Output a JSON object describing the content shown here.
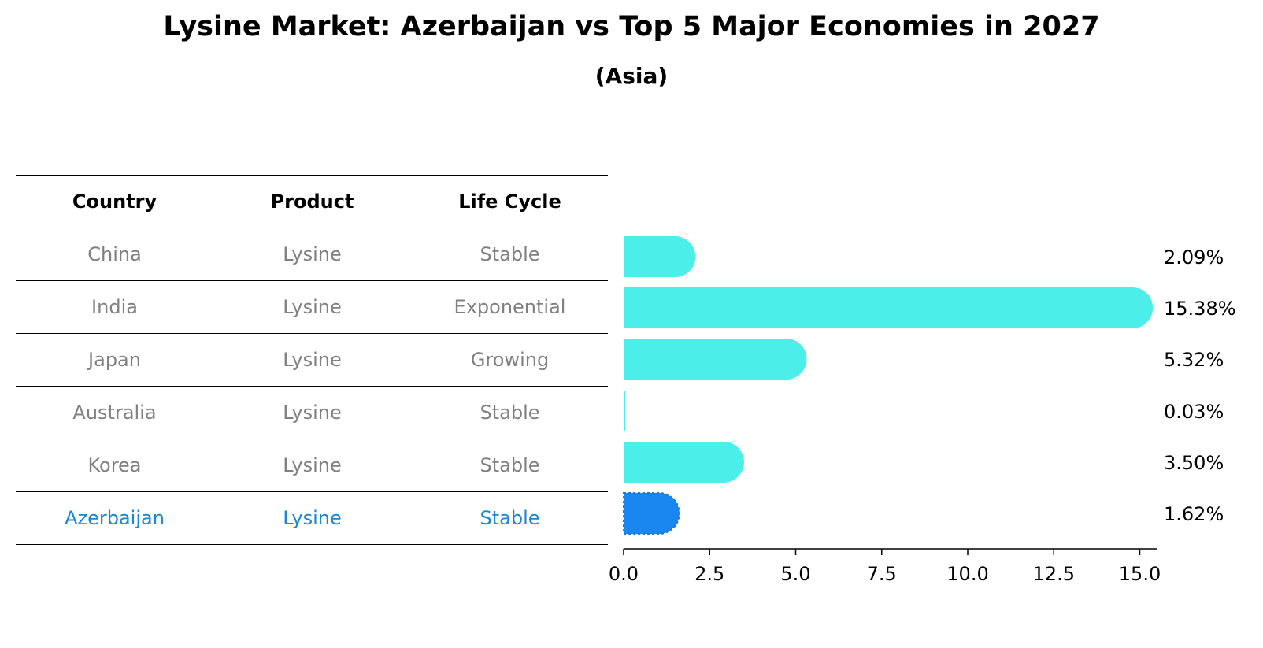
{
  "title": "Lysine Market: Azerbaijan vs Top 5 Major Economies in 2027",
  "subtitle": "(Asia)",
  "table": {
    "headers": [
      "Country",
      "Product",
      "Life Cycle"
    ],
    "rows": [
      {
        "country": "China",
        "product": "Lysine",
        "life_cycle": "Stable"
      },
      {
        "country": "India",
        "product": "Lysine",
        "life_cycle": "Exponential"
      },
      {
        "country": "Japan",
        "product": "Lysine",
        "life_cycle": "Growing"
      },
      {
        "country": "Australia",
        "product": "Lysine",
        "life_cycle": "Stable"
      },
      {
        "country": "Korea",
        "product": "Lysine",
        "life_cycle": "Stable"
      },
      {
        "country": "Azerbaijan",
        "product": "Lysine",
        "life_cycle": "Stable"
      }
    ]
  },
  "chart_data": {
    "type": "bar",
    "orientation": "horizontal",
    "categories": [
      "China",
      "India",
      "Japan",
      "Australia",
      "Korea",
      "Azerbaijan"
    ],
    "values": [
      2.09,
      15.38,
      5.32,
      0.03,
      3.5,
      1.62
    ],
    "value_labels": [
      "2.09%",
      "15.38%",
      "5.32%",
      "0.03%",
      "3.50%",
      "1.62%"
    ],
    "xlim": [
      0,
      16.2
    ],
    "xticks": [
      0.0,
      2.5,
      5.0,
      7.5,
      10.0,
      12.5,
      15.0
    ],
    "xtick_labels": [
      "0.0",
      "2.5",
      "5.0",
      "7.5",
      "10.0",
      "12.5",
      "15.0"
    ],
    "highlight": "Azerbaijan",
    "colors": {
      "default": "#4ceeea",
      "highlight": "#1a86f0",
      "highlight_text": "#1a86d6",
      "muted_text": "#808080"
    }
  }
}
